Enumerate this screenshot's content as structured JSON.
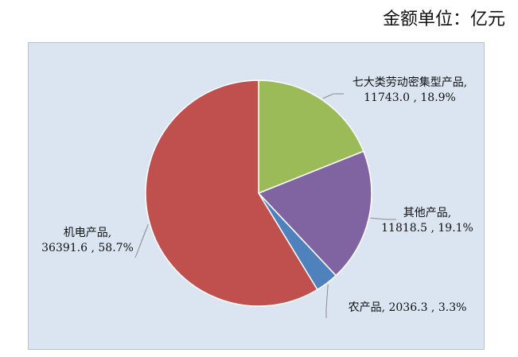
{
  "header": {
    "unit_note": "金额单位：亿元"
  },
  "colors": {
    "plot_background": "#dbe5f1",
    "leader_line": "#8c8c8c",
    "slice_border": "#ffffff"
  },
  "chart_data": {
    "type": "pie",
    "title": "",
    "start_angle_deg": 0,
    "direction": "clockwise",
    "slices": [
      {
        "name": "七大类劳动密集型产品",
        "value": 11743.0,
        "percent": 18.9,
        "color": "#9bbb59",
        "label_line1": "七大类劳动密集型产品,",
        "label_line2": "11743.0 , 18.9%"
      },
      {
        "name": "其他产品",
        "value": 11818.5,
        "percent": 19.1,
        "color": "#8064a2",
        "label_line1": "其他产品,",
        "label_line2": "11818.5 , 19.1%"
      },
      {
        "name": "农产品",
        "value": 2036.3,
        "percent": 3.3,
        "color": "#4f81bd",
        "label_line1": "农产品, 2036.3 , 3.3%",
        "label_line2": ""
      },
      {
        "name": "机电产品",
        "value": 36391.6,
        "percent": 58.7,
        "color": "#c0504d",
        "label_line1": "机电产品,",
        "label_line2": "36391.6 , 58.7%"
      }
    ]
  }
}
